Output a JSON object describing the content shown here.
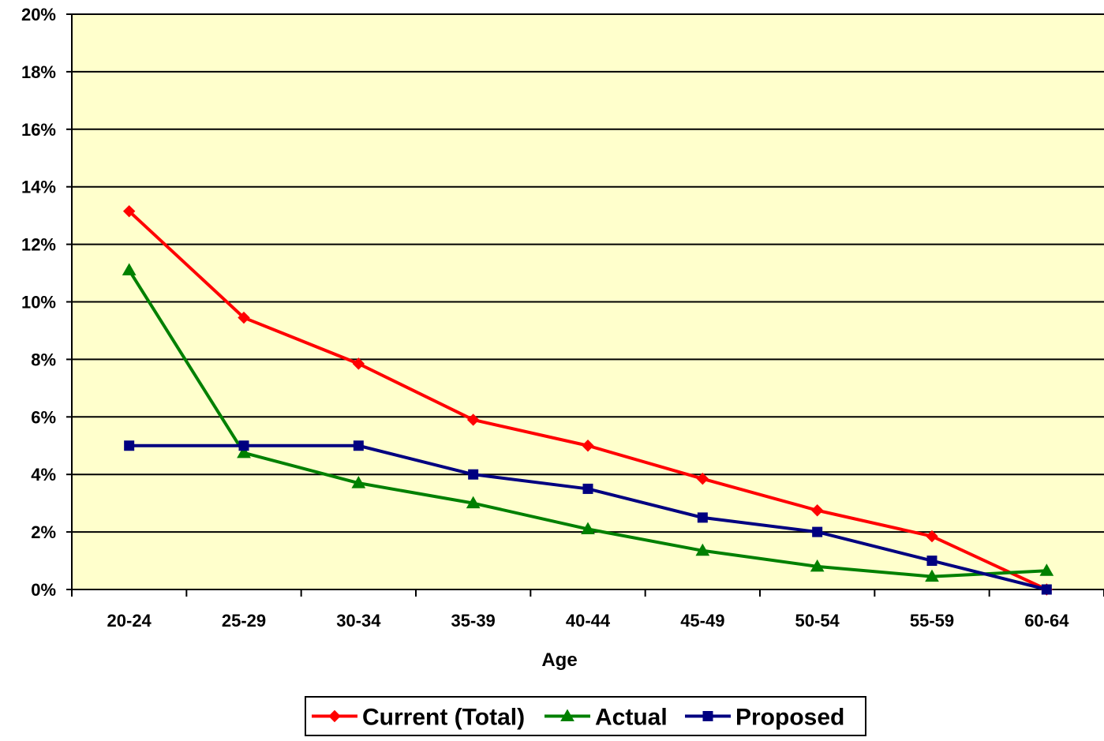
{
  "chart_data": {
    "type": "line",
    "xlabel": "Age",
    "categories": [
      "20-24",
      "25-29",
      "30-34",
      "35-39",
      "40-44",
      "45-49",
      "50-54",
      "55-59",
      "60-64"
    ],
    "y_tick_labels": [
      "0%",
      "2%",
      "4%",
      "6%",
      "8%",
      "10%",
      "12%",
      "14%",
      "16%",
      "18%",
      "20%"
    ],
    "ylim": [
      0,
      20
    ],
    "y_unit": "%",
    "grid": "horizontal",
    "plot_background": "#ffffcc",
    "legend_placement": "bottom-center",
    "series": [
      {
        "name": "Current (Total)",
        "color": "#ff0000",
        "marker": "diamond",
        "values": [
          13.15,
          9.45,
          7.85,
          5.9,
          5.0,
          3.85,
          2.75,
          1.85,
          0.0
        ]
      },
      {
        "name": "Actual",
        "color": "#008000",
        "marker": "triangle",
        "values": [
          11.1,
          4.75,
          3.7,
          3.0,
          2.1,
          1.35,
          0.8,
          0.45,
          0.65
        ]
      },
      {
        "name": "Proposed",
        "color": "#000080",
        "marker": "square",
        "values": [
          5.0,
          5.0,
          5.0,
          4.0,
          3.5,
          2.5,
          2.0,
          1.0,
          0.0
        ]
      }
    ]
  }
}
